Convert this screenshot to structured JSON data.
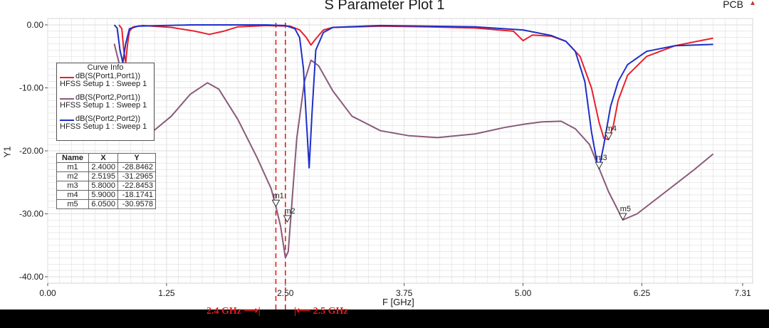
{
  "title": "S Parameter Plot 1",
  "corner_label": "PCB",
  "colors": {
    "s11": "#e8202a",
    "s21": "#8a5a7a",
    "s22": "#1d2fc8",
    "marker_line": "#e21c1c",
    "plot_bg": "#ffffff",
    "grid": "#dedede",
    "frame": "#d4d4d4"
  },
  "legend": {
    "title": "Curve Info",
    "items": [
      {
        "name": "dB(S(Port1,Port1))",
        "setup": "HFSS Setup 1 : Sweep 1",
        "color": "#e8202a"
      },
      {
        "name": "dB(S(Port2,Port1))",
        "setup": "HFSS Setup 1 : Sweep 1",
        "color": "#8a5a7a"
      },
      {
        "name": "dB(S(Port2,Port2))",
        "setup": "HFSS Setup 1 : Sweep 1",
        "color": "#1d2fc8"
      }
    ]
  },
  "marker_table": {
    "headers": [
      "Name",
      "X",
      "Y"
    ],
    "rows": [
      [
        "m1",
        "2.4000",
        "-28.8462"
      ],
      [
        "m2",
        "2.5195",
        "-31.2965"
      ],
      [
        "m3",
        "5.8000",
        "-22.8453"
      ],
      [
        "m4",
        "5.9000",
        "-18.1741"
      ],
      [
        "m5",
        "6.0500",
        "-30.9578"
      ]
    ]
  },
  "band_note": {
    "left": "2.4 GHz",
    "right": "2.5 GHz"
  },
  "chart_data": {
    "type": "line",
    "title": "S Parameter Plot 1",
    "xlabel": "F [GHz]",
    "ylabel": "Y1",
    "xlim": [
      0,
      7.31
    ],
    "ylim": [
      -40,
      0
    ],
    "xticks": [
      0,
      1.25,
      2.5,
      3.75,
      5.0,
      6.25,
      7.31
    ],
    "xtick_labels": [
      "0.00",
      "1.25",
      "2.50",
      "3.75",
      "5.00",
      "6.25",
      "7.31"
    ],
    "yticks": [
      0,
      -10,
      -20,
      -30,
      -40
    ],
    "ytick_labels": [
      "0.00",
      "-10.00",
      "-20.00",
      "-30.00",
      "-40.00"
    ],
    "grid": true,
    "legend_position": "top-left",
    "series": [
      {
        "name": "dB(S(Port1,Port1))",
        "color": "#e8202a",
        "points": [
          [
            0.75,
            0
          ],
          [
            0.78,
            -0.6
          ],
          [
            0.8,
            -4
          ],
          [
            0.82,
            -6
          ],
          [
            0.84,
            -3
          ],
          [
            0.86,
            -1
          ],
          [
            0.9,
            -0.3
          ],
          [
            1.0,
            -0.1
          ],
          [
            1.3,
            -0.4
          ],
          [
            1.55,
            -1.0
          ],
          [
            1.7,
            -1.5
          ],
          [
            1.85,
            -1.0
          ],
          [
            2.0,
            -0.3
          ],
          [
            2.3,
            -0.1
          ],
          [
            2.55,
            -0.2
          ],
          [
            2.65,
            -0.8
          ],
          [
            2.72,
            -2.0
          ],
          [
            2.77,
            -3.2
          ],
          [
            2.82,
            -2.2
          ],
          [
            2.9,
            -0.8
          ],
          [
            3.0,
            -0.4
          ],
          [
            3.5,
            -0.2
          ],
          [
            4.0,
            -0.3
          ],
          [
            4.5,
            -0.5
          ],
          [
            4.9,
            -1.0
          ],
          [
            5.0,
            -2.5
          ],
          [
            5.1,
            -1.6
          ],
          [
            5.3,
            -1.8
          ],
          [
            5.45,
            -2.6
          ],
          [
            5.6,
            -5.0
          ],
          [
            5.72,
            -10.0
          ],
          [
            5.8,
            -15.5
          ],
          [
            5.85,
            -18.0
          ],
          [
            5.9,
            -18.2
          ],
          [
            5.95,
            -16.0
          ],
          [
            6.0,
            -12.0
          ],
          [
            6.1,
            -8.0
          ],
          [
            6.3,
            -5.0
          ],
          [
            6.6,
            -3.3
          ],
          [
            7.0,
            -2.1
          ]
        ]
      },
      {
        "name": "dB(S(Port2,Port1))",
        "color": "#8a5a7a",
        "points": [
          [
            0.7,
            -3.0
          ],
          [
            0.75,
            -6.0
          ],
          [
            0.8,
            -12.0
          ],
          [
            0.85,
            -17.0
          ],
          [
            0.95,
            -17.5
          ],
          [
            1.1,
            -17.0
          ],
          [
            1.3,
            -14.5
          ],
          [
            1.5,
            -11.0
          ],
          [
            1.68,
            -9.2
          ],
          [
            1.8,
            -10.2
          ],
          [
            2.0,
            -15.0
          ],
          [
            2.2,
            -21.0
          ],
          [
            2.35,
            -26.0
          ],
          [
            2.4,
            -28.8
          ],
          [
            2.45,
            -32.0
          ],
          [
            2.5,
            -37.0
          ],
          [
            2.53,
            -36.0
          ],
          [
            2.56,
            -30.0
          ],
          [
            2.62,
            -18.0
          ],
          [
            2.7,
            -9.0
          ],
          [
            2.77,
            -5.6
          ],
          [
            2.85,
            -6.5
          ],
          [
            3.0,
            -10.5
          ],
          [
            3.2,
            -14.5
          ],
          [
            3.5,
            -16.8
          ],
          [
            3.8,
            -17.6
          ],
          [
            4.1,
            -17.9
          ],
          [
            4.5,
            -17.3
          ],
          [
            4.8,
            -16.3
          ],
          [
            5.0,
            -15.8
          ],
          [
            5.2,
            -15.4
          ],
          [
            5.4,
            -15.3
          ],
          [
            5.55,
            -16.5
          ],
          [
            5.7,
            -19.0
          ],
          [
            5.8,
            -22.8
          ],
          [
            5.9,
            -26.5
          ],
          [
            6.05,
            -30.96
          ],
          [
            6.2,
            -30.0
          ],
          [
            6.5,
            -26.5
          ],
          [
            6.8,
            -23.0
          ],
          [
            7.0,
            -20.5
          ]
        ]
      },
      {
        "name": "dB(S(Port2,Port2))",
        "color": "#1d2fc8",
        "points": [
          [
            0.7,
            0
          ],
          [
            0.73,
            -0.5
          ],
          [
            0.76,
            -4.0
          ],
          [
            0.79,
            -6.0
          ],
          [
            0.82,
            -3.0
          ],
          [
            0.86,
            -0.6
          ],
          [
            0.95,
            -0.2
          ],
          [
            1.5,
            0
          ],
          [
            2.0,
            0
          ],
          [
            2.3,
            0
          ],
          [
            2.5,
            -0.1
          ],
          [
            2.6,
            -0.6
          ],
          [
            2.65,
            -2.0
          ],
          [
            2.69,
            -7.0
          ],
          [
            2.72,
            -15.0
          ],
          [
            2.75,
            -22.7
          ],
          [
            2.78,
            -14.0
          ],
          [
            2.82,
            -4.0
          ],
          [
            2.9,
            -1.2
          ],
          [
            3.0,
            -0.4
          ],
          [
            3.5,
            -0.1
          ],
          [
            4.5,
            -0.3
          ],
          [
            5.0,
            -0.8
          ],
          [
            5.3,
            -1.7
          ],
          [
            5.45,
            -2.6
          ],
          [
            5.55,
            -4.2
          ],
          [
            5.65,
            -9.0
          ],
          [
            5.72,
            -17.0
          ],
          [
            5.78,
            -22.0
          ],
          [
            5.8,
            -22.8
          ],
          [
            5.85,
            -19.0
          ],
          [
            5.92,
            -13.0
          ],
          [
            6.0,
            -9.0
          ],
          [
            6.1,
            -6.3
          ],
          [
            6.3,
            -4.2
          ],
          [
            6.6,
            -3.3
          ],
          [
            7.0,
            -3.1
          ]
        ]
      }
    ],
    "markers": [
      {
        "name": "m1",
        "x": 2.4,
        "y": -28.8462
      },
      {
        "name": "m2",
        "x": 2.5195,
        "y": -31.2965
      },
      {
        "name": "m3",
        "x": 5.8,
        "y": -22.8453
      },
      {
        "name": "m4",
        "x": 5.9,
        "y": -18.1741
      },
      {
        "name": "m5",
        "x": 6.05,
        "y": -30.9578
      }
    ],
    "reference_lines_x": [
      2.4,
      2.5
    ]
  }
}
